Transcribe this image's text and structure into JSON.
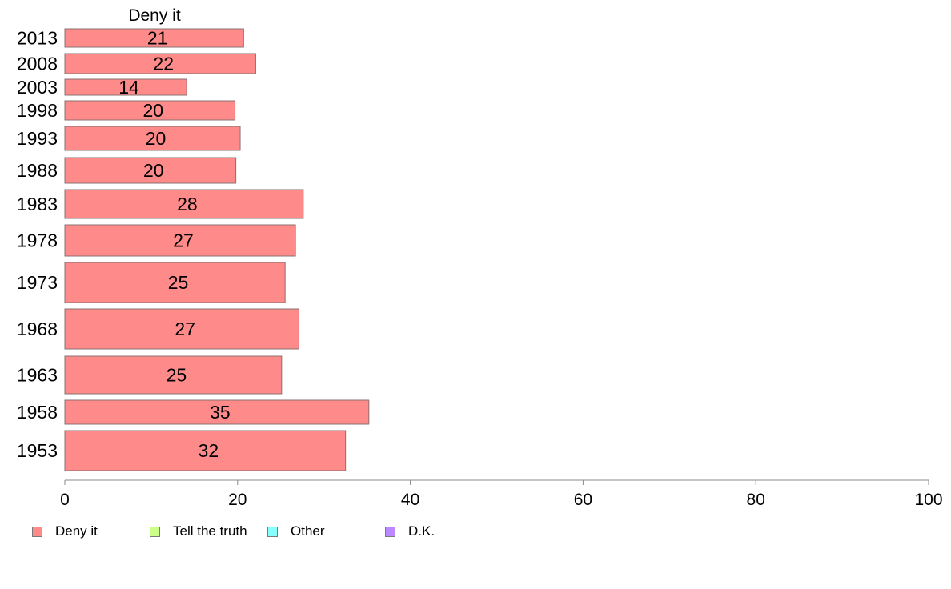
{
  "chart_data": {
    "type": "bar",
    "orientation": "horizontal",
    "title": "Deny it",
    "categories": [
      "2013",
      "2008",
      "2003",
      "1998",
      "1993",
      "1988",
      "1983",
      "1978",
      "1973",
      "1968",
      "1963",
      "1958",
      "1953"
    ],
    "series": [
      {
        "name": "Deny it",
        "color": "#ff8a8a",
        "values": [
          20.7,
          22.1,
          14.1,
          19.7,
          20.3,
          19.8,
          27.6,
          26.7,
          25.5,
          27.1,
          25.1,
          35.2,
          32.5
        ],
        "labels": [
          "21",
          "22",
          "14",
          "20",
          "20",
          "20",
          "28",
          "27",
          "25",
          "27",
          "25",
          "35",
          "32"
        ]
      }
    ],
    "xlim": [
      0,
      100
    ],
    "xticks": [
      "0",
      "20",
      "40",
      "60",
      "80",
      "100"
    ],
    "grid": false,
    "legend_position": "bottom",
    "legend": [
      {
        "label": "Deny it",
        "color": "#ff8a8a"
      },
      {
        "label": "Tell the truth",
        "color": "#ccff88"
      },
      {
        "label": "Other",
        "color": "#88ffff"
      },
      {
        "label": "D.K.",
        "color": "#bb88ff"
      }
    ]
  }
}
